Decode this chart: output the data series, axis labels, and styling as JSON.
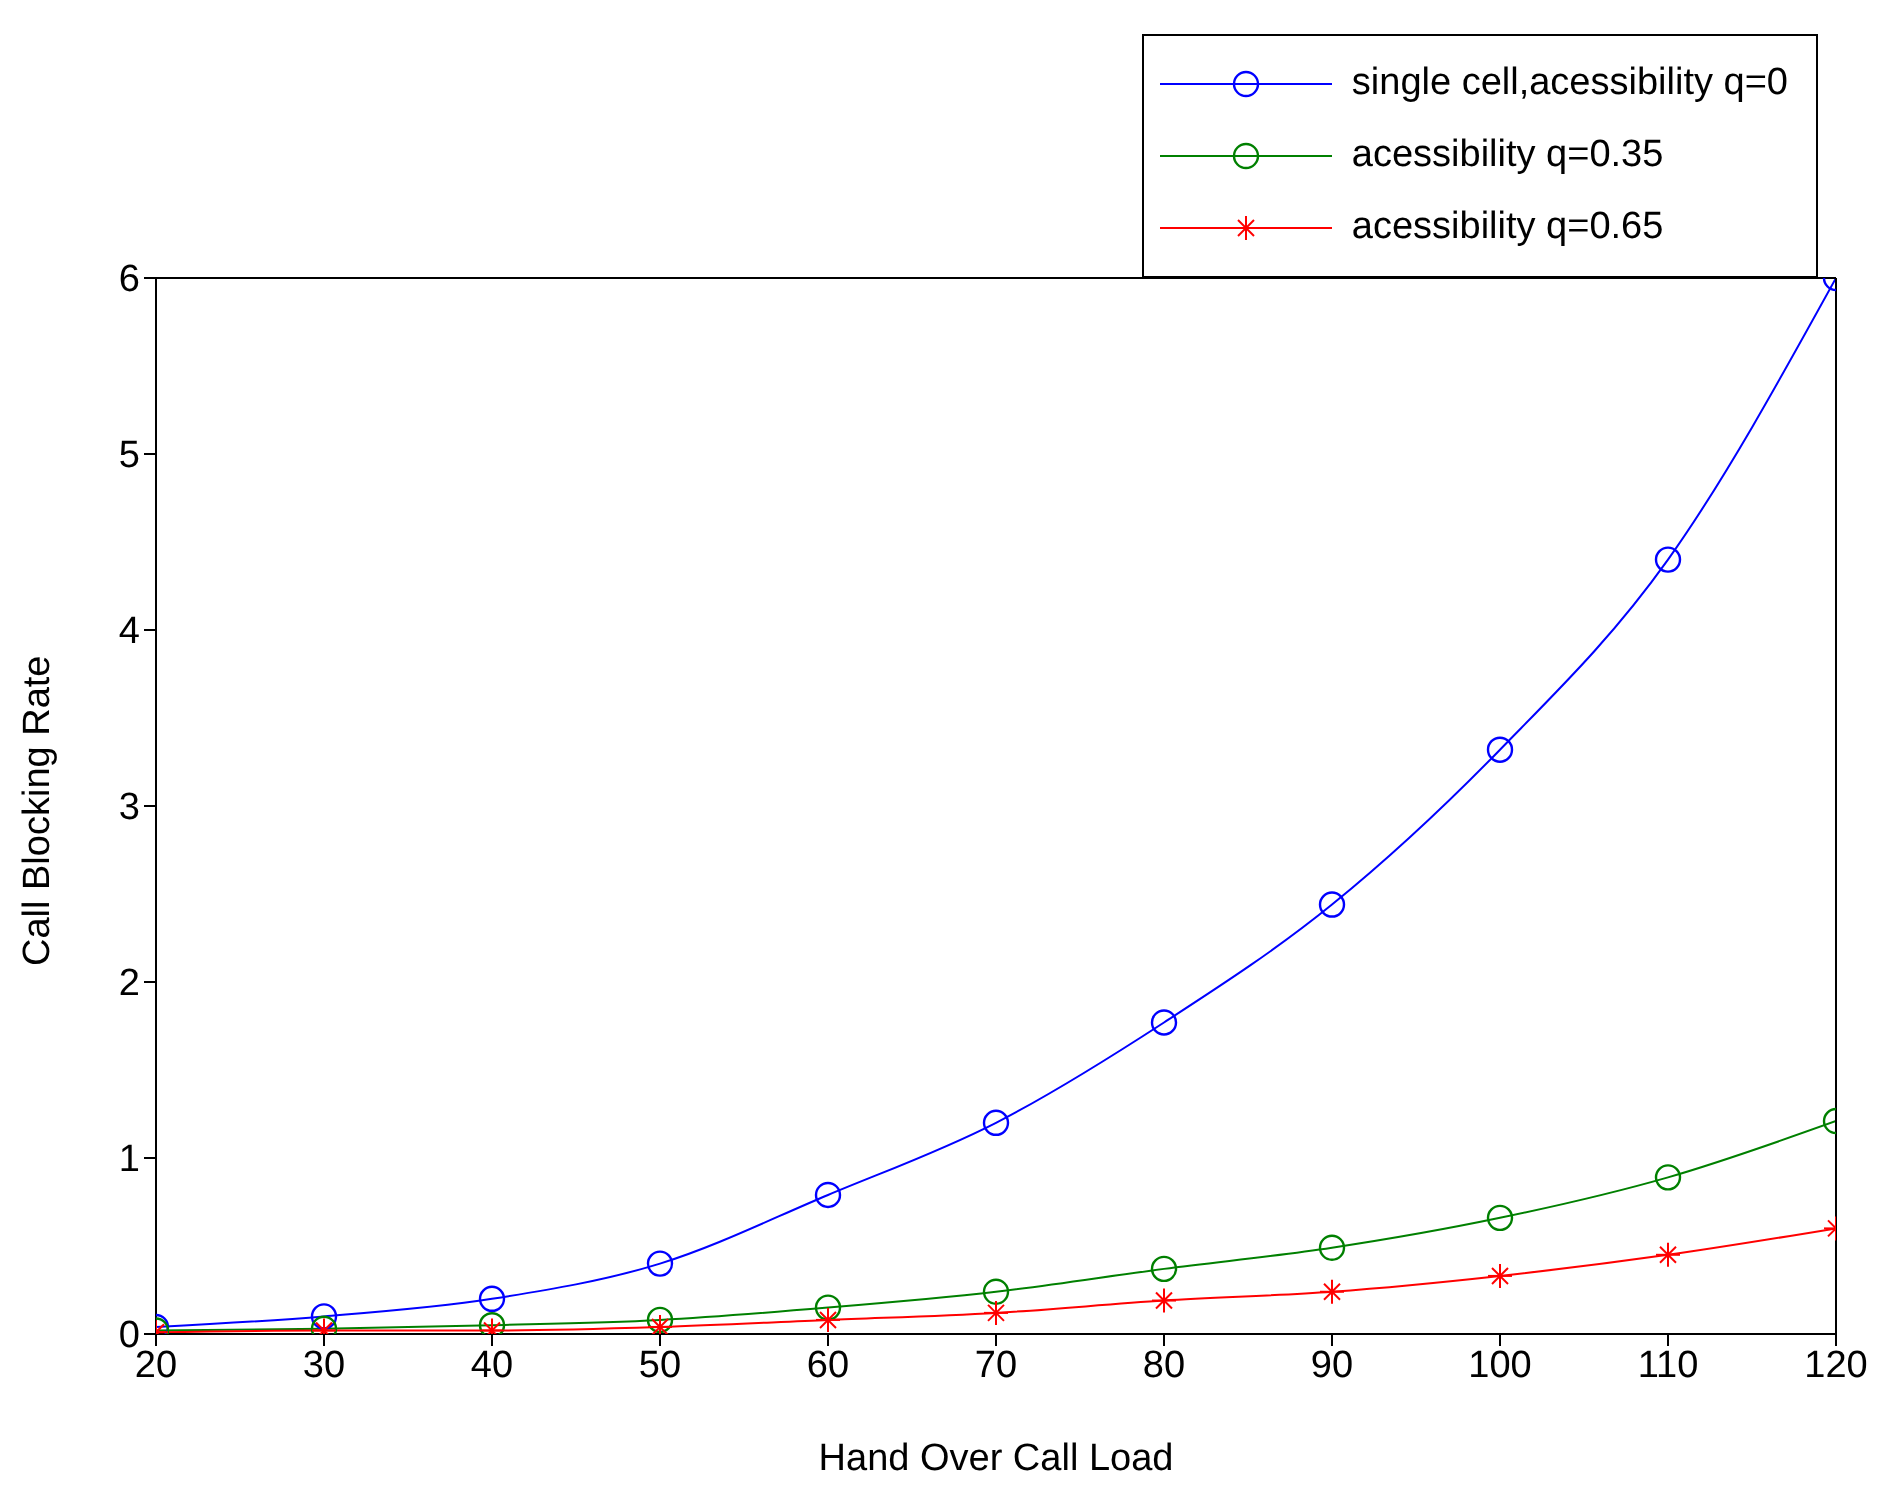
{
  "chart_data": {
    "type": "line",
    "xlabel": "Hand Over Call Load",
    "ylabel": "Call Blocking Rate",
    "x": [
      20,
      30,
      40,
      50,
      60,
      70,
      80,
      90,
      100,
      110,
      120
    ],
    "series": [
      {
        "name": "single cell,acessibility q=0",
        "color": "#0000ff",
        "marker": "circle",
        "values": [
          0.04,
          0.1,
          0.2,
          0.4,
          0.79,
          1.2,
          1.77,
          2.44,
          3.32,
          4.4,
          6.0
        ]
      },
      {
        "name": "acessibility q=0.35",
        "color": "#008000",
        "marker": "circle",
        "values": [
          0.02,
          0.03,
          0.05,
          0.08,
          0.15,
          0.24,
          0.37,
          0.49,
          0.66,
          0.89,
          1.21
        ]
      },
      {
        "name": "acessibility q=0.65",
        "color": "#ff0000",
        "marker": "cross",
        "values": [
          0.01,
          0.02,
          0.02,
          0.04,
          0.08,
          0.12,
          0.19,
          0.24,
          0.33,
          0.45,
          0.6
        ]
      }
    ],
    "xlim": [
      20,
      120
    ],
    "xticks": [
      20,
      30,
      40,
      50,
      60,
      70,
      80,
      90,
      100,
      110,
      120
    ],
    "ylim": [
      0,
      6
    ],
    "yticks": [
      0,
      1,
      2,
      3,
      4,
      5,
      6
    ],
    "grid": false,
    "legend": "top right"
  }
}
